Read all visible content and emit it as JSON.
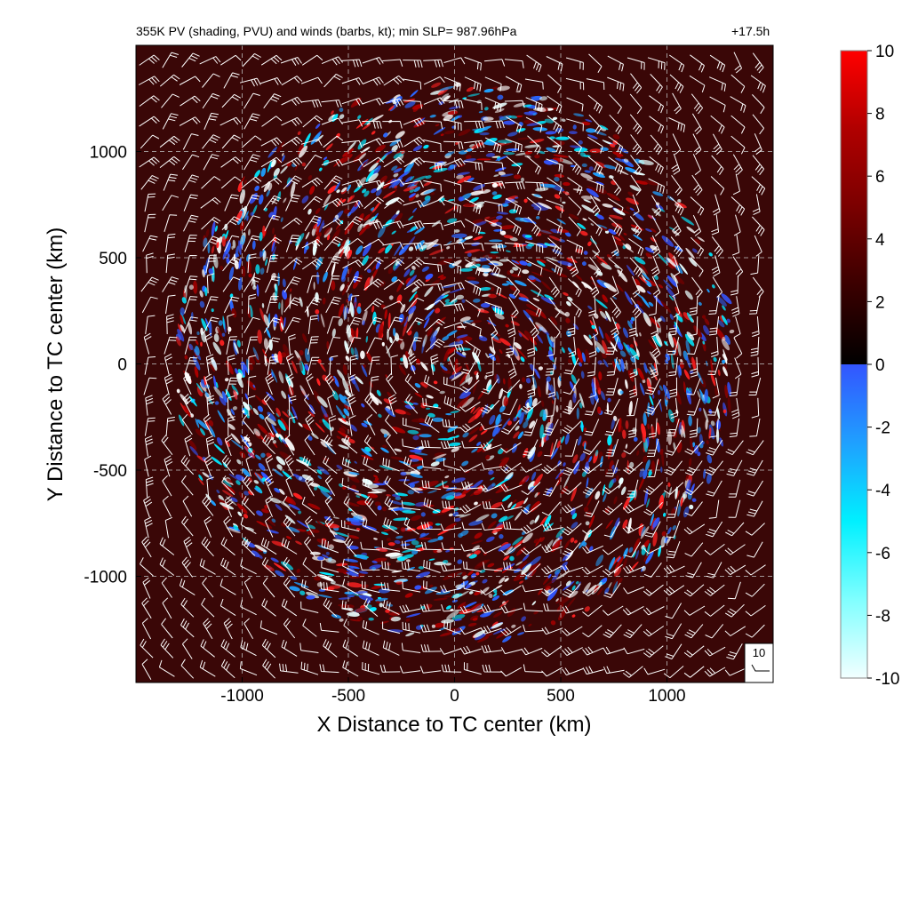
{
  "header": {
    "title": "355K PV (shading, PVU) and winds (barbs, kt); min SLP= 987.96hPa",
    "time_label": "+17.5h"
  },
  "chart_data": {
    "type": "heatmap",
    "title": "355K PV (shading, PVU) and winds (barbs, kt); min SLP= 987.96hPa",
    "subtitle": "+17.5h",
    "xlabel": "X Distance to TC center (km)",
    "ylabel": "Y Distance to TC center (km)",
    "xlim": [
      -1500,
      1500
    ],
    "ylim": [
      -1500,
      1500
    ],
    "x_ticks": [
      -1000,
      -500,
      0,
      500,
      1000
    ],
    "y_ticks": [
      -1000,
      -500,
      0,
      500,
      1000
    ],
    "grid": true,
    "colorbar": {
      "range": [
        -10,
        10
      ],
      "ticks": [
        10,
        8,
        6,
        4,
        2,
        0,
        -2,
        -4,
        -6,
        -8,
        -10
      ],
      "positive_colors": [
        "#000000",
        "#3a0000",
        "#7a0000",
        "#b00000",
        "#ff0000"
      ],
      "negative_colors": [
        "#3355ff",
        "#1fa0ff",
        "#00f0ff",
        "#80ffff",
        "#f2ffff"
      ],
      "placement": "right"
    },
    "shading_background": "#3a0707",
    "reference_barb": {
      "label": "10"
    },
    "wind_barbs": true
  }
}
